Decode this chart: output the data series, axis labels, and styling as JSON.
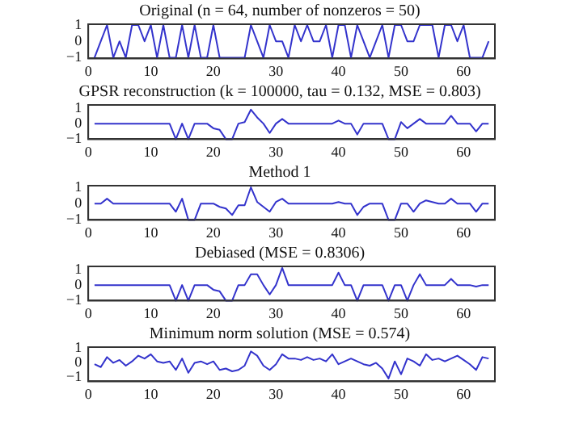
{
  "chart_data": [
    {
      "type": "line",
      "title": "Original (n = 64, number of nonzeros = 50)",
      "x": [
        1,
        2,
        3,
        4,
        5,
        6,
        7,
        8,
        9,
        10,
        11,
        12,
        13,
        14,
        15,
        16,
        17,
        18,
        19,
        20,
        21,
        22,
        23,
        24,
        25,
        26,
        27,
        28,
        29,
        30,
        31,
        32,
        33,
        34,
        35,
        36,
        37,
        38,
        39,
        40,
        41,
        42,
        43,
        44,
        45,
        46,
        47,
        48,
        49,
        50,
        51,
        52,
        53,
        54,
        55,
        56,
        57,
        58,
        59,
        60,
        61,
        62,
        63,
        64
      ],
      "series": [
        {
          "color": "#3333cc",
          "values": [
            -1,
            0,
            1,
            -1,
            0,
            -1,
            1,
            1,
            0,
            1,
            -1,
            1,
            -1,
            -1,
            1,
            -1,
            1,
            -1,
            -1,
            1,
            -1,
            -1,
            -1,
            -1,
            -1,
            1,
            0,
            -1,
            1,
            0,
            0,
            -1,
            1,
            0,
            1,
            0,
            0,
            1,
            -1,
            1,
            1,
            -1,
            1,
            0,
            -1,
            0,
            1,
            -1,
            1,
            1,
            0,
            0,
            1,
            1,
            1,
            -1,
            1,
            1,
            0,
            1,
            -1,
            -1,
            -1,
            0
          ]
        }
      ],
      "xlim": [
        0,
        65
      ],
      "xticks": [
        0,
        10,
        20,
        30,
        40,
        50,
        60
      ],
      "ylim": [
        -1.05,
        1.05
      ],
      "yticks": [
        -1,
        0,
        1
      ],
      "grid": false,
      "marker": "none",
      "legend": false
    },
    {
      "type": "line",
      "title": "GPSR reconstruction (k = 100000, tau = 0.132, MSE = 0.803)",
      "x": [
        1,
        2,
        3,
        4,
        5,
        6,
        7,
        8,
        9,
        10,
        11,
        12,
        13,
        14,
        15,
        16,
        17,
        18,
        19,
        20,
        21,
        22,
        23,
        24,
        25,
        26,
        27,
        28,
        29,
        30,
        31,
        32,
        33,
        34,
        35,
        36,
        37,
        38,
        39,
        40,
        41,
        42,
        43,
        44,
        45,
        46,
        47,
        48,
        49,
        50,
        51,
        52,
        53,
        54,
        55,
        56,
        57,
        58,
        59,
        60,
        61,
        62,
        63,
        64
      ],
      "series": [
        {
          "color": "#3333cc",
          "values": [
            0,
            0,
            0,
            0,
            0,
            0,
            0,
            0,
            0,
            0,
            0,
            0,
            0,
            -1,
            0,
            -1,
            0,
            0,
            0,
            -0.3,
            -0.4,
            -1,
            -1,
            0,
            0.1,
            0.9,
            0.4,
            0,
            -0.6,
            0,
            0.3,
            0,
            0,
            0,
            0,
            0,
            0,
            0,
            0,
            0.2,
            0,
            0,
            -0.7,
            0,
            0,
            0,
            0,
            -1,
            -1,
            0.1,
            -0.3,
            0,
            0.3,
            0,
            0,
            0,
            0,
            0.5,
            0,
            0,
            0,
            -0.5,
            0,
            0
          ]
        }
      ],
      "xlim": [
        0,
        65
      ],
      "xticks": [
        0,
        10,
        20,
        30,
        40,
        50,
        60
      ],
      "ylim": [
        -1,
        1.2
      ],
      "yticks": [
        -1,
        0,
        1
      ],
      "grid": false,
      "marker": "none",
      "legend": false
    },
    {
      "type": "line",
      "title": "Method 1",
      "x": [
        1,
        2,
        3,
        4,
        5,
        6,
        7,
        8,
        9,
        10,
        11,
        12,
        13,
        14,
        15,
        16,
        17,
        18,
        19,
        20,
        21,
        22,
        23,
        24,
        25,
        26,
        27,
        28,
        29,
        30,
        31,
        32,
        33,
        34,
        35,
        36,
        37,
        38,
        39,
        40,
        41,
        42,
        43,
        44,
        45,
        46,
        47,
        48,
        49,
        50,
        51,
        52,
        53,
        54,
        55,
        56,
        57,
        58,
        59,
        60,
        61,
        62,
        63,
        64
      ],
      "series": [
        {
          "color": "#3333cc",
          "values": [
            0,
            0,
            0.3,
            0,
            0,
            0,
            0,
            0,
            0,
            0,
            0,
            0,
            0,
            -0.5,
            0.3,
            -1,
            -1,
            0,
            0,
            0,
            -0.2,
            -0.3,
            -0.7,
            -0.1,
            -0.1,
            1,
            0.1,
            -0.2,
            -0.5,
            0.1,
            0.3,
            0,
            0,
            0,
            0,
            0,
            0,
            0,
            0,
            0.1,
            0,
            0,
            -0.7,
            -0.2,
            0,
            0,
            0,
            -1,
            -1,
            0,
            0,
            -0.5,
            0,
            0.2,
            0.1,
            0,
            0,
            0.3,
            0,
            0,
            0,
            -0.5,
            0,
            0
          ]
        }
      ],
      "xlim": [
        0,
        65
      ],
      "xticks": [
        0,
        10,
        20,
        30,
        40,
        50,
        60
      ],
      "ylim": [
        -1,
        1.1
      ],
      "yticks": [
        -1,
        0,
        1
      ],
      "grid": false,
      "marker": "none",
      "legend": false
    },
    {
      "type": "line",
      "title": "Debiased (MSE = 0.8306)",
      "x": [
        1,
        2,
        3,
        4,
        5,
        6,
        7,
        8,
        9,
        10,
        11,
        12,
        13,
        14,
        15,
        16,
        17,
        18,
        19,
        20,
        21,
        22,
        23,
        24,
        25,
        26,
        27,
        28,
        29,
        30,
        31,
        32,
        33,
        34,
        35,
        36,
        37,
        38,
        39,
        40,
        41,
        42,
        43,
        44,
        45,
        46,
        47,
        48,
        49,
        50,
        51,
        52,
        53,
        54,
        55,
        56,
        57,
        58,
        59,
        60,
        61,
        62,
        63,
        64
      ],
      "series": [
        {
          "color": "#3333cc",
          "values": [
            0,
            0,
            0,
            0,
            0,
            0,
            0,
            0,
            0,
            0,
            0,
            0,
            0,
            -1,
            0,
            -1,
            0,
            0,
            0,
            -0.3,
            -0.4,
            -1,
            -1,
            0,
            0,
            0.7,
            0.7,
            0,
            -0.6,
            0,
            1.1,
            0,
            0,
            0,
            0,
            0,
            0,
            0,
            0,
            0.8,
            0,
            0,
            -1,
            0,
            0,
            0,
            0,
            -1,
            0,
            0,
            -1,
            0,
            0.7,
            0,
            0,
            0,
            0,
            0.4,
            0,
            0,
            0,
            -0.1,
            0,
            0
          ]
        }
      ],
      "xlim": [
        0,
        65
      ],
      "xticks": [
        0,
        10,
        20,
        30,
        40,
        50,
        60
      ],
      "ylim": [
        -1,
        1.2
      ],
      "yticks": [
        -1,
        0,
        1
      ],
      "grid": false,
      "marker": "none",
      "legend": false
    },
    {
      "type": "line",
      "title": "Minimum norm solution (MSE = 0.574)",
      "x": [
        1,
        2,
        3,
        4,
        5,
        6,
        7,
        8,
        9,
        10,
        11,
        12,
        13,
        14,
        15,
        16,
        17,
        18,
        19,
        20,
        21,
        22,
        23,
        24,
        25,
        26,
        27,
        28,
        29,
        30,
        31,
        32,
        33,
        34,
        35,
        36,
        37,
        38,
        39,
        40,
        41,
        42,
        43,
        44,
        45,
        46,
        47,
        48,
        49,
        50,
        51,
        52,
        53,
        54,
        55,
        56,
        57,
        58,
        59,
        60,
        61,
        62,
        63,
        64
      ],
      "series": [
        {
          "color": "#3333cc",
          "values": [
            -0.1,
            -0.3,
            0.4,
            0,
            0.2,
            -0.2,
            0.1,
            0.5,
            0.3,
            0.6,
            0.1,
            0,
            0.1,
            -0.5,
            0.3,
            -0.7,
            0,
            0.1,
            -0.1,
            0.1,
            -0.5,
            -0.4,
            -0.6,
            -0.5,
            -0.2,
            0.8,
            0.5,
            -0.2,
            -0.5,
            -0.1,
            0.6,
            0.3,
            0.3,
            0.2,
            0.4,
            0.2,
            0.3,
            0.1,
            0.6,
            -0.1,
            0.1,
            0.3,
            0.1,
            -0.1,
            -0.2,
            0,
            -0.4,
            -1.1,
            0.1,
            -0.8,
            0.3,
            0.1,
            -0.2,
            0.6,
            0.2,
            0.3,
            0.1,
            0.3,
            0.5,
            0.2,
            -0.1,
            -0.5,
            0.4,
            0.3
          ]
        }
      ],
      "xlim": [
        0,
        65
      ],
      "xticks": [
        0,
        10,
        20,
        30,
        40,
        50,
        60
      ],
      "ylim": [
        -1.3,
        1.1
      ],
      "yticks": [
        -1,
        0,
        1
      ],
      "grid": false,
      "marker": "none",
      "legend": false
    }
  ]
}
